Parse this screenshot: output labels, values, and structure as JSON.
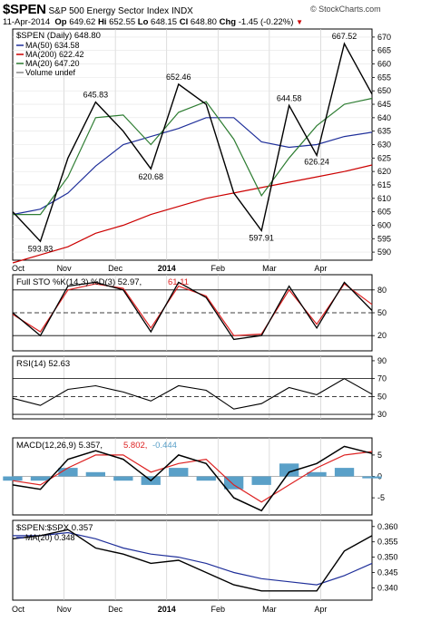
{
  "header": {
    "symbol": "$SPEN",
    "name": "S&P 500 Energy Sector Index INDX",
    "watermark": "© StockCharts.com",
    "date": "11-Apr-2014",
    "open_label": "Op",
    "open": "649.62",
    "high_label": "Hi",
    "high": "652.55",
    "low_label": "Lo",
    "low": "648.15",
    "close_label": "Cl",
    "close": "648.80",
    "chg_label": "Chg",
    "chg": "-1.45 (-0.22%)"
  },
  "colors": {
    "price": "#000000",
    "ma50": "#1f2f9a",
    "ma200": "#cc0000",
    "ma20": "#2e7d32",
    "sto_d": "#dd2222",
    "macd_signal": "#dd2222",
    "histogram": "#5aa0c8",
    "ratio_ma": "#1f2f9a",
    "chg_down": "#cc0000"
  },
  "x_axis": {
    "labels": [
      "Oct",
      "Nov",
      "Dec",
      "2014",
      "Feb",
      "Mar",
      "Apr"
    ],
    "bold_label": "2014"
  },
  "chart_data": [
    {
      "type": "line",
      "panel": "price",
      "title": "$SPEN (Daily) 648.80",
      "legend": [
        {
          "name": "MA(50) 634.58",
          "color": "#1f2f9a"
        },
        {
          "name": "MA(200) 622.42",
          "color": "#cc0000"
        },
        {
          "name": "MA(20) 647.20",
          "color": "#2e7d32"
        },
        {
          "name": "Volume undef",
          "color": "#888888"
        }
      ],
      "ylim": [
        587,
        673
      ],
      "yticks": [
        590,
        595,
        600,
        605,
        610,
        615,
        620,
        625,
        630,
        635,
        640,
        645,
        650,
        655,
        660,
        665,
        670
      ],
      "x": [
        "Oct 1",
        "Oct 15",
        "Nov 1",
        "Nov 15",
        "Dec 1",
        "Dec 15",
        "Jan 1",
        "Jan 15",
        "Feb 1",
        "Feb 15",
        "Mar 1",
        "Mar 15",
        "Apr 1",
        "Apr 11"
      ],
      "series": [
        {
          "name": "$SPEN",
          "values": [
            605,
            594,
            625,
            645.83,
            635,
            621,
            652.46,
            645,
            612,
            598,
            644.58,
            626,
            667.52,
            648.8
          ]
        },
        {
          "name": "MA(50)",
          "values": [
            604,
            606,
            612,
            622,
            630,
            633,
            636,
            640,
            640,
            631,
            629,
            630,
            633,
            634.58
          ]
        },
        {
          "name": "MA(200)",
          "values": [
            586,
            589,
            592,
            597,
            600,
            604,
            607,
            610,
            612,
            614,
            616,
            618,
            620,
            622.42
          ]
        },
        {
          "name": "MA(20)",
          "values": [
            604,
            604,
            618,
            640,
            641,
            630,
            642,
            646,
            632,
            611,
            625,
            637,
            645,
            647.2
          ]
        }
      ],
      "annotations": [
        {
          "text": "593.83",
          "x": "Oct 15",
          "y": 593.83
        },
        {
          "text": "645.83",
          "x": "Nov 15",
          "y": 645.83
        },
        {
          "text": "620.68",
          "x": "Dec 15",
          "y": 620.68
        },
        {
          "text": "652.46",
          "x": "Jan 1",
          "y": 652.46
        },
        {
          "text": "597.91",
          "x": "Feb 15",
          "y": 597.91
        },
        {
          "text": "644.58",
          "x": "Mar 1",
          "y": 644.58
        },
        {
          "text": "626.24",
          "x": "Mar 15",
          "y": 626.24
        },
        {
          "text": "667.52",
          "x": "Apr 1",
          "y": 667.52
        }
      ]
    },
    {
      "type": "line",
      "panel": "stochastic",
      "title": "Full STO %K(14,3) %D(3) 52.97, 61.11",
      "label_main": "Full STO %K(14,3) %D(3) 52.97,",
      "label_d": "61.11",
      "ylim": [
        0,
        100
      ],
      "yticks": [
        20,
        50,
        80
      ],
      "series": [
        {
          "name": "%K",
          "values": [
            50,
            20,
            85,
            90,
            80,
            25,
            90,
            70,
            15,
            20,
            85,
            30,
            90,
            53
          ]
        },
        {
          "name": "%D",
          "values": [
            48,
            25,
            80,
            88,
            82,
            30,
            85,
            72,
            20,
            22,
            80,
            35,
            88,
            61
          ]
        }
      ]
    },
    {
      "type": "line",
      "panel": "rsi",
      "title": "RSI(14) 52.63",
      "ylim": [
        25,
        95
      ],
      "yticks": [
        30,
        50,
        70,
        90
      ],
      "series": [
        {
          "name": "RSI(14)",
          "values": [
            48,
            40,
            58,
            62,
            55,
            45,
            62,
            57,
            36,
            42,
            60,
            52,
            70,
            52.63
          ]
        }
      ]
    },
    {
      "type": "bar",
      "panel": "macd",
      "title": "MACD(12,26,9) 5.357, 5.802, -0.444",
      "label_main": "MACD(12,26,9) 5.357,",
      "label_signal": "5.802,",
      "label_hist": "-0.444",
      "ylim": [
        -9,
        9
      ],
      "yticks": [
        -5,
        0,
        5
      ],
      "series": [
        {
          "name": "MACD",
          "values": [
            -2,
            -3,
            4,
            6,
            4,
            -1,
            5,
            3,
            -5,
            -8,
            1,
            3,
            7,
            5.357
          ]
        },
        {
          "name": "Signal",
          "values": [
            -1,
            -2,
            2,
            5,
            5,
            1,
            3,
            4,
            -2,
            -6,
            -2,
            2,
            5,
            5.802
          ]
        },
        {
          "name": "Histogram",
          "values": [
            -1,
            -1,
            2,
            1,
            -1,
            -2,
            2,
            -1,
            -3,
            -2,
            3,
            1,
            2,
            -0.444
          ]
        }
      ]
    },
    {
      "type": "line",
      "panel": "ratio",
      "title": "$SPEN:$SPX 0.357",
      "legend": [
        {
          "name": "MA(20) 0.348",
          "color": "#1f2f9a"
        }
      ],
      "ylim": [
        0.336,
        0.362
      ],
      "yticks": [
        0.34,
        0.345,
        0.35,
        0.355,
        0.36
      ],
      "yticklabels": [
        "0.340",
        "0.345",
        "0.350",
        "0.355",
        "0.360"
      ],
      "series": [
        {
          "name": "$SPEN:$SPX",
          "values": [
            0.356,
            0.357,
            0.359,
            0.353,
            0.351,
            0.348,
            0.349,
            0.345,
            0.341,
            0.339,
            0.339,
            0.339,
            0.352,
            0.357
          ]
        },
        {
          "name": "MA(20)",
          "values": [
            0.357,
            0.357,
            0.358,
            0.356,
            0.353,
            0.351,
            0.35,
            0.348,
            0.345,
            0.343,
            0.342,
            0.341,
            0.344,
            0.348
          ]
        }
      ]
    }
  ]
}
